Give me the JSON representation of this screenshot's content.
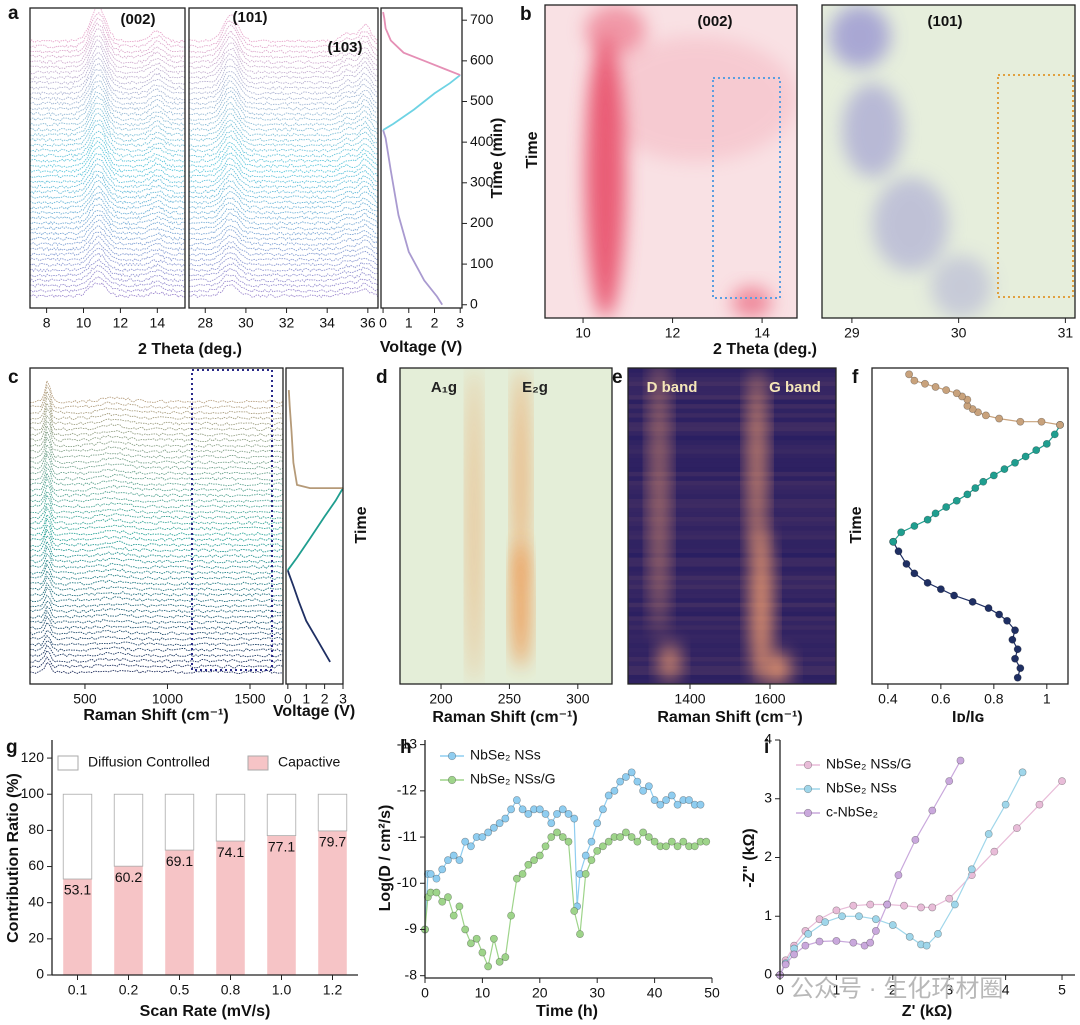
{
  "watermark": "公众号 · 生化环材圈",
  "chart_data": [
    {
      "type": "waterfall",
      "panel": "a",
      "annotations": [
        "(002)"
      ],
      "xlim": [
        7.1,
        15.5
      ],
      "xticks": [
        8,
        10,
        12,
        14
      ],
      "xlabel": "2 Theta (deg.)",
      "colors": [
        "#a08cd0",
        "#5cc8dc",
        "#e8a8cc"
      ]
    },
    {
      "type": "waterfall",
      "annotations": [
        "(101)",
        "(103)"
      ],
      "xlim": [
        27.2,
        36.5
      ],
      "xticks": [
        28,
        30,
        32,
        34,
        36
      ],
      "colors": [
        "#a08cd0",
        "#5cc8dc",
        "#e8a8cc"
      ]
    },
    {
      "type": "line",
      "xlim": [
        -0.08,
        3.07
      ],
      "xticks": [
        0,
        1,
        2,
        3
      ],
      "ylim": [
        -8,
        730
      ],
      "yticks": [
        0,
        100,
        200,
        300,
        400,
        500,
        600,
        700
      ],
      "y_axis_side": "right",
      "xlabel": "Voltage (V)",
      "ylabel": "Time (min)",
      "series": [
        {
          "color": "#a99ad0",
          "x": [
            2.3,
            2.1,
            1.6,
            1.0,
            0.6,
            0.3,
            0.1,
            0
          ],
          "values": [
            0,
            20,
            60,
            130,
            220,
            330,
            410,
            430
          ]
        },
        {
          "color": "#6ed3e4",
          "x": [
            0,
            0.4,
            1.2,
            2.0,
            2.6,
            3.0
          ],
          "values": [
            430,
            445,
            480,
            520,
            545,
            565
          ]
        },
        {
          "color": "#e58fb5",
          "x": [
            3.0,
            2.4,
            1.6,
            0.8,
            0.3,
            0.1,
            0.05,
            0
          ],
          "values": [
            565,
            580,
            600,
            620,
            650,
            680,
            705,
            720
          ]
        }
      ]
    },
    {
      "type": "heatmap",
      "panel": "b",
      "annotations": [
        "(002)"
      ],
      "xlim": [
        9.15,
        14.78
      ],
      "xticks": [
        10,
        12,
        14
      ],
      "xlabel": "2 Theta (deg.)",
      "ylabel": "Time",
      "colors": [
        "#f9e1e4",
        "#e8506a"
      ]
    },
    {
      "type": "heatmap",
      "annotations": [
        "(101)"
      ],
      "xlim": [
        28.72,
        31.09
      ],
      "xticks": [
        29,
        30,
        31
      ],
      "colors": [
        "#e6eedc",
        "#9a96d2"
      ]
    },
    {
      "type": "waterfall",
      "panel": "c",
      "xlim": [
        167,
        1700
      ],
      "xticks": [
        500,
        1000,
        1500
      ],
      "xlabel": "Raman Shift (cm⁻¹)",
      "colors": [
        "#1c2a5a",
        "#2aa69a",
        "#b8a080"
      ]
    },
    {
      "type": "line",
      "xlim": [
        -0.1,
        3.0
      ],
      "xticks": [
        0,
        1,
        2,
        3
      ],
      "ylim": [
        0,
        100
      ],
      "xlabel": "Voltage (V)",
      "series": [
        {
          "color": "#1f2f63",
          "x": [
            2.3,
            2.0,
            1.5,
            1.0,
            0.6,
            0.3,
            0.05,
            0
          ],
          "values": [
            7,
            10,
            15,
            20,
            26,
            31,
            35,
            36
          ]
        },
        {
          "color": "#1f9e8f",
          "x": [
            0,
            0.5,
            1.2,
            2.0,
            2.6,
            3.0
          ],
          "values": [
            36,
            40,
            46,
            53,
            58,
            62
          ]
        },
        {
          "color": "#b59a78",
          "x": [
            3.0,
            2.2,
            1.2,
            0.5,
            0.3,
            0.2,
            0.1,
            0.05
          ],
          "values": [
            62,
            62,
            62,
            63,
            70,
            80,
            88,
            93
          ]
        }
      ]
    },
    {
      "type": "heatmap",
      "panel": "d",
      "annotations": [
        "A₁g",
        "E₂g"
      ],
      "xlim": [
        170,
        325
      ],
      "xticks": [
        200,
        250,
        300
      ],
      "xlabel": "Raman Shift (cm⁻¹)",
      "ylabel": "Time",
      "colors": [
        "#e4eed8",
        "#f08a3a"
      ]
    },
    {
      "type": "heatmap",
      "panel": "e",
      "annotations": [
        "D band",
        "G band"
      ],
      "xlim": [
        1245,
        1765
      ],
      "xticks": [
        1400,
        1600
      ],
      "xlabel": "Raman Shift (cm⁻¹)",
      "colors": [
        "#2a1f62",
        "#f7a070"
      ]
    },
    {
      "type": "line",
      "panel": "f",
      "markers": true,
      "xlim": [
        0.34,
        1.08
      ],
      "xticks": [
        0.4,
        0.6,
        0.8,
        1
      ],
      "ylim": [
        0,
        100
      ],
      "xlabel": "Iᴅ/Iɢ",
      "ylabel": "Time",
      "series": [
        {
          "color": "#1f2f63",
          "x": [
            0.89,
            0.9,
            0.88,
            0.89,
            0.87,
            0.88,
            0.85,
            0.82,
            0.78,
            0.72,
            0.65,
            0.6,
            0.55,
            0.5,
            0.47,
            0.44,
            0.42
          ],
          "values": [
            2,
            5,
            8,
            11,
            14,
            17,
            20,
            22,
            24,
            26,
            28,
            30,
            32,
            35,
            38,
            42,
            45
          ]
        },
        {
          "color": "#1f9e8f",
          "x": [
            0.42,
            0.45,
            0.5,
            0.55,
            0.58,
            0.62,
            0.66,
            0.7,
            0.73,
            0.76,
            0.8,
            0.84,
            0.88,
            0.92,
            0.96,
            1.0,
            1.03,
            1.05
          ],
          "values": [
            45,
            48,
            50,
            52,
            54,
            56,
            58,
            60,
            62,
            64,
            66,
            68,
            70,
            72,
            74,
            76,
            79,
            82
          ]
        },
        {
          "color": "#c8a27c",
          "x": [
            1.05,
            0.98,
            0.9,
            0.82,
            0.77,
            0.74,
            0.72,
            0.7,
            0.7,
            0.68,
            0.66,
            0.62,
            0.58,
            0.54,
            0.5,
            0.48
          ],
          "values": [
            82,
            83,
            83,
            84,
            85,
            86,
            87,
            88,
            90,
            91,
            92,
            93,
            94,
            95,
            96,
            98
          ]
        }
      ]
    },
    {
      "type": "bar",
      "panel": "g",
      "legend": "top",
      "categories": [
        "0.1",
        "0.2",
        "0.5",
        "0.8",
        "1.0",
        "1.2"
      ],
      "ylim": [
        0,
        130
      ],
      "yticks": [
        0,
        20,
        40,
        60,
        80,
        100,
        120
      ],
      "xlabel": "Scan Rate (mV/s)",
      "ylabel": "Contribution Ratio (%)",
      "series": [
        {
          "name": "Capactive",
          "color": "#f6c4c6",
          "values": [
            53.1,
            60.2,
            69.1,
            74.1,
            77.1,
            79.7
          ]
        },
        {
          "name": "Diffusion Controlled",
          "color": "#ffffff",
          "values": [
            46.9,
            39.8,
            30.9,
            25.9,
            22.9,
            20.3
          ]
        }
      ]
    },
    {
      "type": "line",
      "panel": "h",
      "markers": true,
      "legend": "upper left",
      "xlim": [
        0,
        50
      ],
      "xticks": [
        0,
        10,
        20,
        30,
        40,
        50
      ],
      "ylim": [
        -7.95,
        -13.1
      ],
      "yticks": [
        -8,
        -9,
        -10,
        -11,
        -12,
        -13
      ],
      "xlabel": "Time (h)",
      "ylabel": "Log(D / cm²/s)",
      "series": [
        {
          "name": "NbSe₂ NSs",
          "color": "#8fcdf0",
          "x": [
            0,
            0.5,
            1,
            2,
            3,
            4,
            5,
            6,
            7,
            8,
            9,
            10,
            11,
            12,
            13,
            14,
            15,
            16,
            17,
            18,
            19,
            20,
            21,
            22,
            23,
            24,
            25,
            26,
            26.5,
            27,
            28,
            29,
            30,
            31,
            32,
            33,
            34,
            35,
            36,
            37,
            38,
            39,
            40,
            41,
            42,
            43,
            44,
            45,
            46,
            47,
            48
          ],
          "values": [
            -9.0,
            -10.2,
            -10.2,
            -10.1,
            -10.3,
            -10.5,
            -10.6,
            -10.5,
            -10.9,
            -10.8,
            -11.0,
            -11.0,
            -11.1,
            -11.2,
            -11.3,
            -11.4,
            -11.6,
            -11.8,
            -11.6,
            -11.5,
            -11.6,
            -11.6,
            -11.5,
            -11.3,
            -11.5,
            -11.6,
            -11.5,
            -11.4,
            -9.5,
            -10.2,
            -10.6,
            -10.9,
            -11.3,
            -11.6,
            -11.9,
            -12.0,
            -12.2,
            -12.3,
            -12.4,
            -12.2,
            -12.0,
            -12.1,
            -11.8,
            -11.7,
            -11.8,
            -11.9,
            -11.7,
            -11.8,
            -11.8,
            -11.7,
            -11.7
          ]
        },
        {
          "name": "NbSe₂ NSs/G",
          "color": "#9ed48a",
          "x": [
            0,
            0.5,
            1,
            2,
            3,
            4,
            5,
            6,
            7,
            8,
            9,
            10,
            11,
            12,
            13,
            14,
            15,
            16,
            17,
            18,
            19,
            20,
            21,
            22,
            23,
            24,
            25,
            26,
            27,
            28,
            29,
            30,
            31,
            32,
            33,
            34,
            35,
            36,
            37,
            38,
            39,
            40,
            41,
            42,
            43,
            44,
            45,
            46,
            47,
            48,
            49
          ],
          "values": [
            -9.0,
            -9.7,
            -9.8,
            -9.8,
            -9.6,
            -9.7,
            -9.3,
            -9.5,
            -9.0,
            -8.7,
            -8.8,
            -8.5,
            -8.2,
            -8.8,
            -8.3,
            -8.4,
            -9.3,
            -10.1,
            -10.2,
            -10.4,
            -10.5,
            -10.6,
            -10.8,
            -11.0,
            -11.1,
            -11.0,
            -10.9,
            -9.4,
            -8.9,
            -10.2,
            -10.5,
            -10.7,
            -10.8,
            -10.9,
            -11.0,
            -11.0,
            -11.1,
            -11.0,
            -10.9,
            -11.1,
            -11.0,
            -10.9,
            -10.8,
            -10.8,
            -10.9,
            -10.8,
            -10.9,
            -10.8,
            -10.8,
            -10.9,
            -10.9
          ]
        }
      ]
    },
    {
      "type": "line",
      "panel": "i",
      "markers": true,
      "legend": "upper left",
      "xlim": [
        0,
        5.23
      ],
      "xticks": [
        0,
        1,
        2,
        3,
        4,
        5
      ],
      "ylim": [
        0,
        4
      ],
      "yticks": [
        0,
        1,
        2,
        3,
        4
      ],
      "xlabel": "Z' (kΩ)",
      "ylabel": "-Z\" (kΩ)",
      "series": [
        {
          "name": "NbSe₂ NSs/G",
          "color": "#e8bcd8",
          "x": [
            0,
            0.1,
            0.25,
            0.45,
            0.7,
            1.0,
            1.3,
            1.6,
            1.9,
            2.2,
            2.5,
            2.7,
            3.0,
            3.4,
            3.8,
            4.2,
            4.6,
            5.0
          ],
          "values": [
            0,
            0.25,
            0.5,
            0.75,
            0.95,
            1.1,
            1.18,
            1.2,
            1.2,
            1.18,
            1.15,
            1.15,
            1.3,
            1.7,
            2.1,
            2.5,
            2.9,
            3.3
          ]
        },
        {
          "name": "NbSe₂ NSs",
          "color": "#9fd6ea",
          "x": [
            0,
            0.1,
            0.25,
            0.5,
            0.8,
            1.1,
            1.4,
            1.7,
            2.0,
            2.3,
            2.5,
            2.6,
            2.8,
            3.1,
            3.4,
            3.7,
            4.0,
            4.3
          ],
          "values": [
            0,
            0.2,
            0.45,
            0.7,
            0.9,
            1.0,
            1.0,
            0.95,
            0.85,
            0.65,
            0.52,
            0.5,
            0.7,
            1.2,
            1.8,
            2.4,
            2.9,
            3.45
          ]
        },
        {
          "name": "c-NbSe₂",
          "color": "#c9a8dc",
          "x": [
            0,
            0.1,
            0.25,
            0.45,
            0.7,
            1.0,
            1.3,
            1.5,
            1.6,
            1.7,
            1.9,
            2.1,
            2.4,
            2.7,
            3.0,
            3.2
          ],
          "values": [
            0,
            0.18,
            0.35,
            0.5,
            0.57,
            0.58,
            0.55,
            0.5,
            0.55,
            0.75,
            1.2,
            1.7,
            2.3,
            2.8,
            3.3,
            3.65
          ]
        }
      ]
    }
  ]
}
